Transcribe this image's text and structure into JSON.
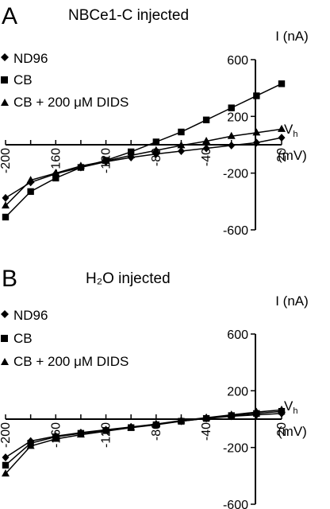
{
  "chart_data": [
    {
      "type": "line",
      "panel_label": "A",
      "title": "NBCe1-C injected",
      "xlabel": "V",
      "xlabel_sub": "h",
      "xunit": "(mV)",
      "ylabel": "I (nA)",
      "x": [
        -200,
        -180,
        -160,
        -140,
        -120,
        -100,
        -80,
        -60,
        -40,
        -20,
        0,
        20
      ],
      "xticks": [
        -200,
        -160,
        -120,
        -80,
        -40,
        20
      ],
      "xtick_labels": [
        "-200",
        "-160",
        "-120",
        "-80",
        "-40",
        "20"
      ],
      "yticks": [
        600,
        200,
        -200,
        -600
      ],
      "ytick_labels": [
        "600",
        "200",
        "-200",
        "-600"
      ],
      "xlim": [
        -200,
        20
      ],
      "ylim": [
        -600,
        600
      ],
      "legend_position": "top-left",
      "series": [
        {
          "name": "ND96",
          "marker": "diamond",
          "values": [
            -375,
            -265,
            -205,
            -160,
            -120,
            -90,
            -65,
            -45,
            -25,
            -5,
            15,
            50
          ]
        },
        {
          "name": "CB",
          "marker": "square",
          "values": [
            -510,
            -330,
            -235,
            -160,
            -110,
            -50,
            20,
            90,
            175,
            260,
            345,
            430
          ]
        },
        {
          "name": "CB + 200 μM DIDS",
          "marker": "triangle",
          "values": [
            -430,
            -250,
            -200,
            -150,
            -115,
            -75,
            -40,
            -5,
            25,
            60,
            85,
            110
          ]
        }
      ]
    },
    {
      "type": "line",
      "panel_label": "B",
      "title": "H₂O injected",
      "xlabel": "V",
      "xlabel_sub": "h",
      "xunit": "(mV)",
      "ylabel": "I (nA)",
      "x": [
        -200,
        -180,
        -160,
        -140,
        -120,
        -100,
        -80,
        -60,
        -40,
        -20,
        0,
        20
      ],
      "xticks": [
        -200,
        -160,
        -120,
        -80,
        -40,
        20
      ],
      "xtick_labels": [
        "-200",
        "-160",
        "-120",
        "-80",
        "-40",
        "20"
      ],
      "yticks": [
        600,
        200,
        -200,
        -600
      ],
      "ytick_labels": [
        "600",
        "200",
        "-200",
        "-600"
      ],
      "xlim": [
        -200,
        20
      ],
      "ylim": [
        -600,
        600
      ],
      "legend_position": "top-left",
      "series": [
        {
          "name": "ND96",
          "marker": "diamond",
          "values": [
            -270,
            -155,
            -120,
            -95,
            -75,
            -55,
            -35,
            -15,
            5,
            20,
            30,
            40
          ]
        },
        {
          "name": "CB",
          "marker": "square",
          "values": [
            -325,
            -170,
            -125,
            -100,
            -80,
            -60,
            -40,
            -15,
            5,
            25,
            40,
            55
          ]
        },
        {
          "name": "CB + 200 μM DIDS",
          "marker": "triangle",
          "values": [
            -385,
            -190,
            -140,
            -110,
            -85,
            -60,
            -35,
            -10,
            10,
            30,
            50,
            65
          ]
        }
      ]
    }
  ]
}
